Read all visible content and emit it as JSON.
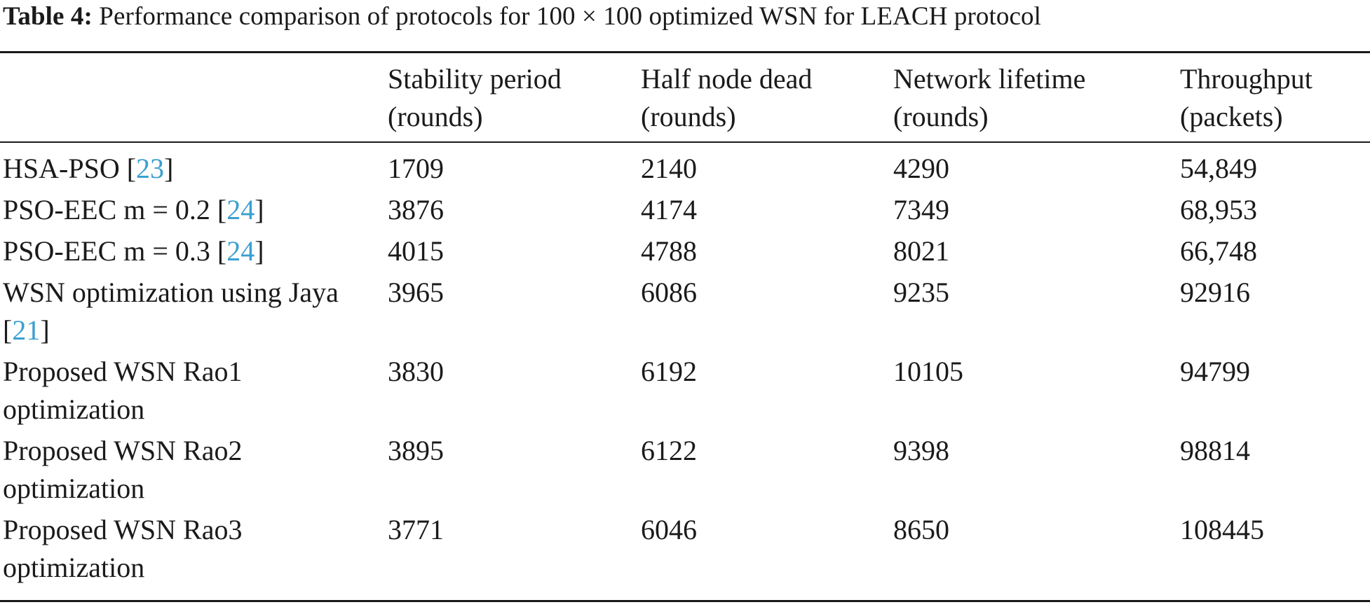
{
  "caption": {
    "label": "Table 4:",
    "text": "Performance comparison of protocols for 100 × 100 optimized WSN for LEACH protocol"
  },
  "table": {
    "headers": [
      {
        "line1": "",
        "line2": ""
      },
      {
        "line1": "Stability period",
        "line2": "(rounds)"
      },
      {
        "line1": "Half node dead",
        "line2": "(rounds)"
      },
      {
        "line1": "Network lifetime",
        "line2": "(rounds)"
      },
      {
        "line1": "Throughput",
        "line2": "(packets)"
      }
    ],
    "rows": [
      {
        "name": "HSA-PSO [",
        "ref": "23",
        "close": "]",
        "stability": "1709",
        "half": "2140",
        "lifetime": "4290",
        "throughput": "54,849"
      },
      {
        "name": "PSO-EEC m = 0.2 [",
        "ref": "24",
        "close": "]",
        "stability": "3876",
        "half": "4174",
        "lifetime": "7349",
        "throughput": "68,953"
      },
      {
        "name": "PSO-EEC m = 0.3 [",
        "ref": "24",
        "close": "]",
        "stability": "4015",
        "half": "4788",
        "lifetime": "8021",
        "throughput": "66,748"
      },
      {
        "name": "WSN optimization using Jaya [",
        "ref": "21",
        "close": "]",
        "stability": "3965",
        "half": "6086",
        "lifetime": "9235",
        "throughput": "92916"
      },
      {
        "name": "Proposed WSN Rao1 optimization",
        "ref": "",
        "close": "",
        "stability": "3830",
        "half": "6192",
        "lifetime": "10105",
        "throughput": "94799"
      },
      {
        "name": "Proposed WSN Rao2 optimization",
        "ref": "",
        "close": "",
        "stability": "3895",
        "half": "6122",
        "lifetime": "9398",
        "throughput": "98814"
      },
      {
        "name": "Proposed WSN Rao3 optimization",
        "ref": "",
        "close": "",
        "stability": "3771",
        "half": "6046",
        "lifetime": "8650",
        "throughput": "108445"
      }
    ],
    "bold_cells": [
      "rows.2.stability",
      "rows.4.half",
      "rows.4.lifetime",
      "rows.6.throughput"
    ],
    "ref_color": "#3a9fd0"
  }
}
